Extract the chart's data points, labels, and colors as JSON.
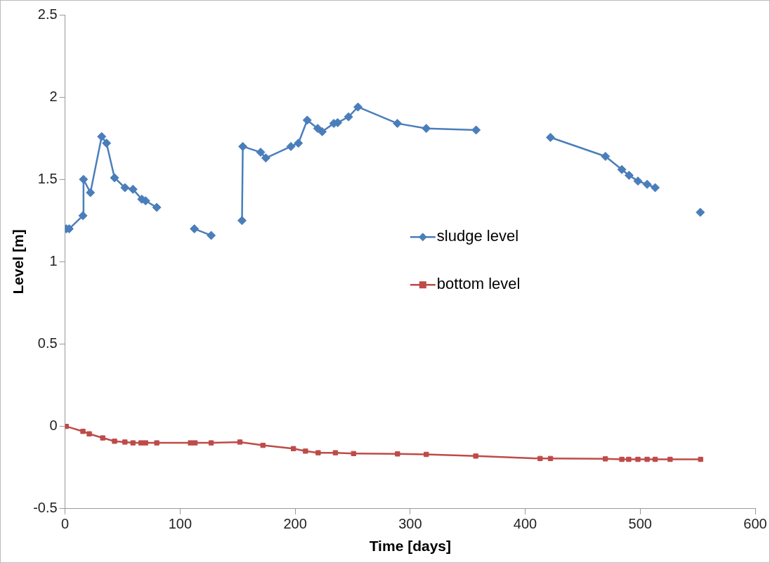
{
  "chart_data": {
    "type": "line",
    "xlabel": "Time [days]",
    "ylabel": "Level [m]",
    "xlim": [
      0,
      600
    ],
    "xticks": [
      0,
      100,
      200,
      300,
      400,
      500,
      600
    ],
    "ylim": [
      -0.5,
      2.5
    ],
    "yticks": [
      -0.5,
      0,
      0.5,
      1,
      1.5,
      2,
      2.5
    ],
    "grid": false,
    "legend": "right",
    "line_style": "solid",
    "series": [
      {
        "name": "sludge level",
        "color": "#4a7ebb",
        "marker": "diamond",
        "x": [
          1,
          3.5,
          15.5,
          16,
          22,
          31.8,
          36,
          43,
          52,
          59,
          66.7,
          70,
          79.7,
          96,
          112.4,
          127,
          140,
          153.8,
          154.5,
          170,
          174.5,
          196.3,
          202.8,
          210.5,
          219.6,
          223.5,
          233.6,
          237,
          246.4,
          254.6,
          288.9,
          314,
          357.3,
          390,
          422,
          469.8,
          484,
          490.3,
          498,
          506,
          513,
          530,
          552.2
        ],
        "values": [
          1.2,
          1.2,
          1.28,
          1.5,
          1.42,
          1.76,
          1.72,
          1.51,
          1.45,
          1.44,
          1.38,
          1.37,
          1.33,
          null,
          1.2,
          1.16,
          null,
          1.25,
          1.7,
          1.665,
          1.63,
          1.7,
          1.72,
          1.86,
          1.81,
          1.79,
          1.84,
          1.845,
          1.88,
          1.94,
          1.84,
          1.81,
          1.8,
          null,
          1.755,
          1.64,
          1.56,
          1.525,
          1.49,
          1.47,
          1.45,
          null,
          1.3
        ]
      },
      {
        "name": "bottom level",
        "color": "#be4b48",
        "marker": "square",
        "x": [
          1,
          15.5,
          21,
          32.7,
          43,
          52,
          59,
          66,
          70,
          79.7,
          109,
          113,
          127,
          152,
          172,
          198.5,
          209,
          220,
          235,
          250.8,
          289,
          314,
          357,
          413,
          422,
          469.7,
          484,
          490,
          498,
          506,
          513,
          526,
          552.5
        ],
        "values": [
          0,
          -0.03,
          -0.045,
          -0.07,
          -0.09,
          -0.095,
          -0.1,
          -0.1,
          -0.1,
          -0.1,
          -0.1,
          -0.1,
          -0.1,
          -0.095,
          -0.115,
          -0.135,
          -0.15,
          -0.16,
          -0.16,
          -0.165,
          -0.167,
          -0.17,
          -0.18,
          -0.195,
          -0.195,
          -0.197,
          -0.2,
          -0.2,
          -0.2,
          -0.2,
          -0.2,
          -0.2,
          -0.2
        ]
      }
    ]
  }
}
